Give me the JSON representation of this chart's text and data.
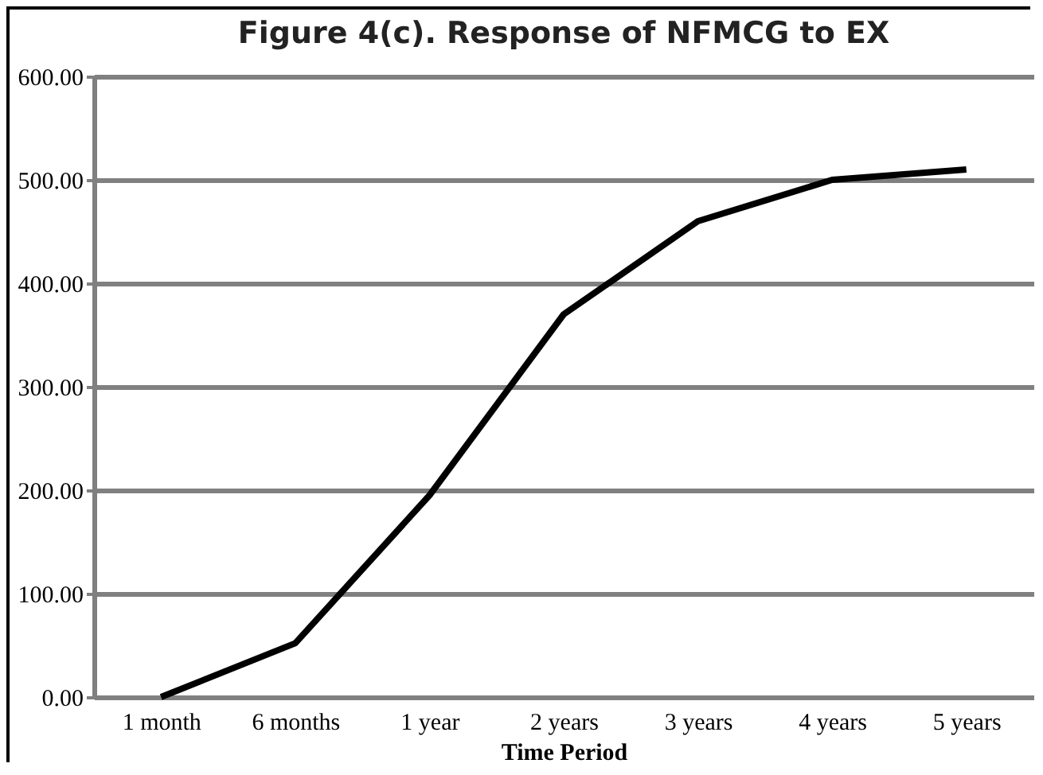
{
  "chart_data": {
    "type": "line",
    "title": "Figure 4(c). Response of NFMCG to EX",
    "xlabel": "Time Period",
    "categories": [
      "1 month",
      "6 months",
      "1 year",
      "2 years",
      "3 years",
      "4 years",
      "5 years"
    ],
    "series": [
      {
        "color": "#000000",
        "values": [
          0,
          52,
          195,
          370,
          460,
          500,
          510
        ]
      }
    ],
    "ylim": [
      0,
      600
    ],
    "yticks": [
      {
        "value": 0,
        "label": "0.00"
      },
      {
        "value": 100,
        "label": "100.00"
      },
      {
        "value": 200,
        "label": "200.00"
      },
      {
        "value": 300,
        "label": "300.00"
      },
      {
        "value": 400,
        "label": "400.00"
      },
      {
        "value": 500,
        "label": "500.00"
      },
      {
        "value": 600,
        "label": "600.00"
      }
    ],
    "grid": "y",
    "legend": false,
    "marker": "none",
    "line_style": "solid"
  }
}
